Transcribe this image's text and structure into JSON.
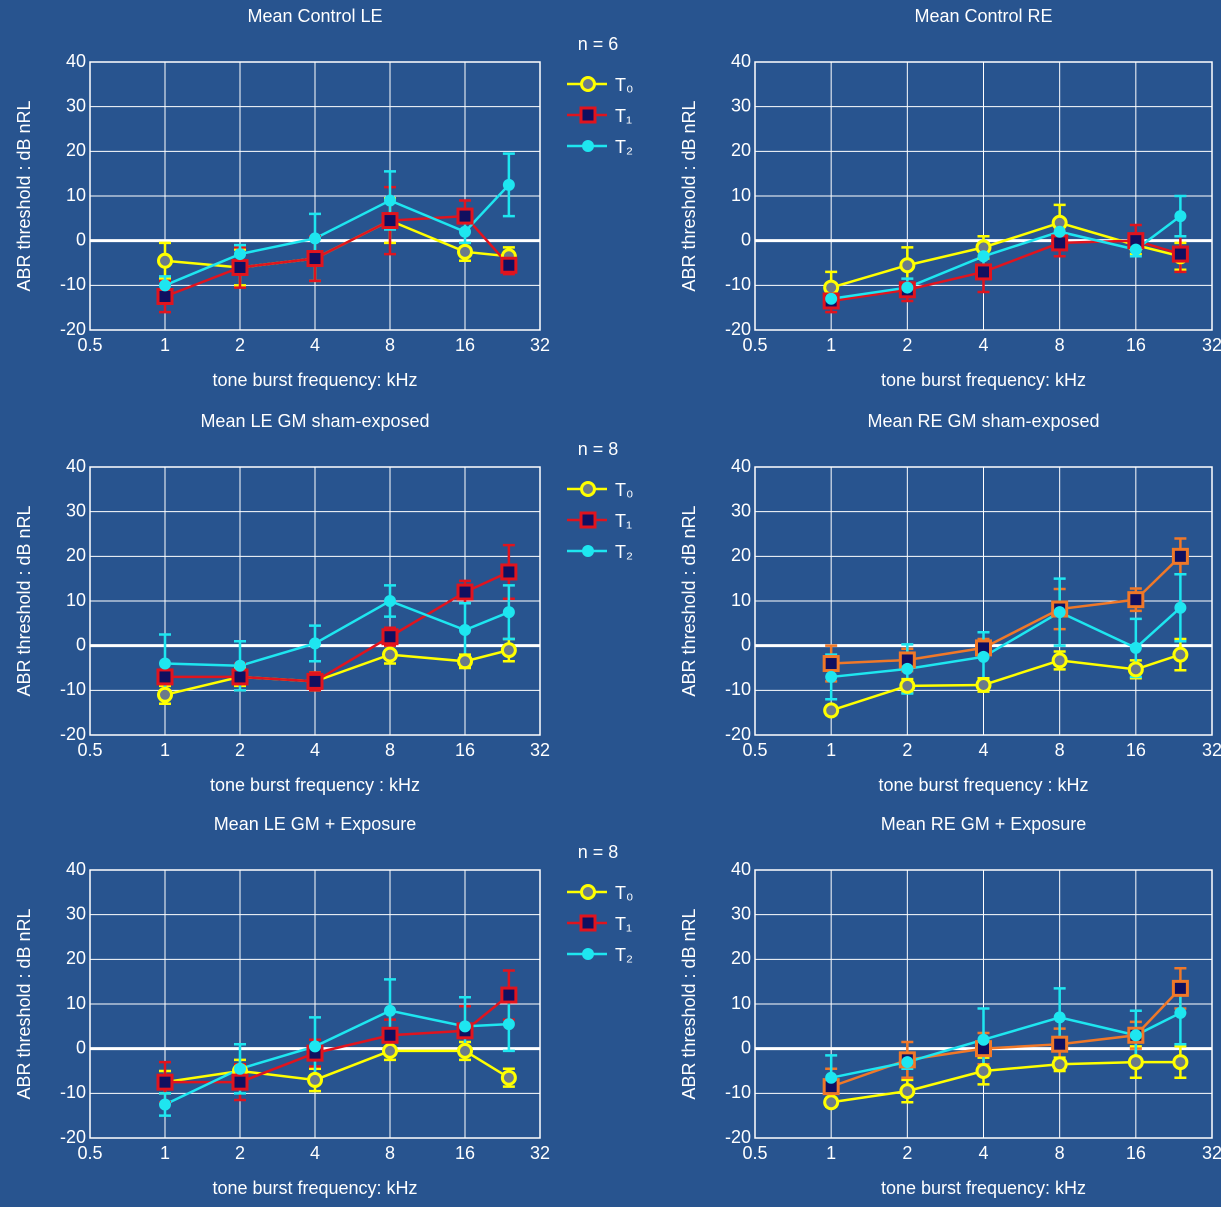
{
  "chart_data": [
    {
      "type": "line",
      "title": "Mean Control  LE",
      "xlabel": "tone burst frequency: kHz",
      "ylabel": "ABR threshold : dB nRL",
      "annotation": "n = 6",
      "legend": true,
      "xscale": "log",
      "grid": true,
      "hline": 0,
      "x": [
        1,
        2,
        4,
        8,
        16,
        24
      ],
      "xlim": [
        0.5,
        32
      ],
      "xticks": [
        0.5,
        1,
        2,
        4,
        8,
        16,
        32
      ],
      "ylim": [
        -20,
        40
      ],
      "yticks": [
        -20,
        -10,
        0,
        10,
        20,
        30,
        40
      ],
      "series": [
        {
          "name": "T₀",
          "color": "#ffff00",
          "marker": "circle-open",
          "values": [
            -4.5,
            -6,
            -4,
            4.5,
            -2.5,
            -3.5
          ],
          "errors": [
            4,
            4,
            5,
            5,
            2,
            2
          ]
        },
        {
          "name": "T₁",
          "color": "#e0141e",
          "marker": "square",
          "values": [
            -12.5,
            -6,
            -4,
            4.5,
            5.5,
            -5.5
          ],
          "errors": [
            3.5,
            4.5,
            5,
            7.5,
            3.5,
            2
          ]
        },
        {
          "name": "T₂",
          "color": "#1ee6f0",
          "marker": "circle",
          "values": [
            -10,
            -3,
            0.5,
            9,
            2,
            12.5
          ],
          "errors": [
            2,
            2,
            5.5,
            6.5,
            2.5,
            7
          ]
        }
      ]
    },
    {
      "type": "line",
      "title": "Mean Control RE",
      "xlabel": "tone burst frequency: kHz",
      "ylabel": "ABR threshold : dB nRL",
      "legend": false,
      "xscale": "log",
      "grid": true,
      "hline": 0,
      "x": [
        1,
        2,
        4,
        8,
        16,
        24
      ],
      "xlim": [
        0.5,
        32
      ],
      "xticks": [
        0.5,
        1,
        2,
        4,
        8,
        16,
        32
      ],
      "ylim": [
        -20,
        40
      ],
      "yticks": [
        -20,
        -10,
        0,
        10,
        20,
        30,
        40
      ],
      "series": [
        {
          "color": "#ffff00",
          "marker": "circle-open",
          "values": [
            -10.5,
            -5.5,
            -1.5,
            4,
            -1,
            -3.5
          ],
          "errors": [
            3.5,
            4,
            2.5,
            4,
            2,
            3
          ]
        },
        {
          "color": "#e0141e",
          "marker": "square",
          "values": [
            -13.5,
            -11,
            -7,
            -0.5,
            0,
            -3
          ],
          "errors": [
            2.5,
            2.5,
            4.5,
            3,
            3.5,
            4
          ]
        },
        {
          "color": "#1ee6f0",
          "marker": "circle",
          "values": [
            -13,
            -10.5,
            -3.5,
            2,
            -2,
            5.5
          ],
          "errors": [
            2,
            2,
            2,
            1.5,
            1.5,
            4.5
          ]
        }
      ]
    },
    {
      "type": "line",
      "title": "Mean LE GM sham-exposed",
      "xlabel": "tone burst frequency : kHz",
      "ylabel": "ABR threshold : dB nRL",
      "annotation": "n = 8",
      "legend": true,
      "xscale": "log",
      "grid": true,
      "hline": 0,
      "x": [
        1,
        2,
        4,
        8,
        16,
        24
      ],
      "xlim": [
        0.5,
        32
      ],
      "xticks": [
        0.5,
        1,
        2,
        4,
        8,
        16,
        32
      ],
      "ylim": [
        -20,
        40
      ],
      "yticks": [
        -20,
        -10,
        0,
        10,
        20,
        30,
        40
      ],
      "series": [
        {
          "name": "T₀",
          "color": "#ffff00",
          "marker": "circle-open",
          "values": [
            -11,
            -7,
            -8,
            -2,
            -3.5,
            -1
          ],
          "errors": [
            2,
            2,
            2,
            2,
            1.5,
            2.5
          ]
        },
        {
          "name": "T₁",
          "color": "#e0141e",
          "marker": "square",
          "values": [
            -7,
            -7,
            -8,
            2,
            12,
            16.5
          ],
          "errors": [
            3,
            3,
            2,
            2,
            2.5,
            6
          ]
        },
        {
          "name": "T₂",
          "color": "#1ee6f0",
          "marker": "circle",
          "values": [
            -4,
            -4.5,
            0.5,
            10,
            3.5,
            7.5
          ],
          "errors": [
            6.5,
            5.5,
            4,
            3.5,
            6,
            6
          ]
        }
      ]
    },
    {
      "type": "line",
      "title": "Mean RE GM sham-exposed",
      "xlabel": "tone burst frequency : kHz",
      "ylabel": "ABR threshold : dB nRL",
      "legend": false,
      "xscale": "log",
      "grid": true,
      "hline": 0,
      "x": [
        1,
        2,
        4,
        8,
        16,
        24
      ],
      "xlim": [
        0.5,
        32
      ],
      "xticks": [
        0.5,
        1,
        2,
        4,
        8,
        16,
        32
      ],
      "ylim": [
        -20,
        40
      ],
      "yticks": [
        -20,
        -10,
        0,
        10,
        20,
        30,
        40
      ],
      "series": [
        {
          "color": "#ffff00",
          "marker": "circle-open",
          "values": [
            -14.5,
            -9,
            -8.8,
            -3.3,
            -5.3,
            -2
          ],
          "errors": [
            1,
            1.5,
            1.5,
            2,
            2,
            3.5
          ]
        },
        {
          "color": "#f07828",
          "marker": "square",
          "values": [
            -4,
            -3.2,
            -0.5,
            8.2,
            10.3,
            20
          ],
          "errors": [
            4,
            2.5,
            2,
            4.5,
            2.5,
            4
          ]
        },
        {
          "color": "#1ee6f0",
          "marker": "circle",
          "values": [
            -7,
            -5.2,
            -2.5,
            7.5,
            -0.5,
            8.5
          ],
          "errors": [
            5,
            5.5,
            5.5,
            7.5,
            6.5,
            7.5
          ]
        }
      ]
    },
    {
      "type": "line",
      "title": "Mean LE GM + Exposure",
      "xlabel": "tone burst frequency: kHz",
      "ylabel": "ABR threshold : dB nRL",
      "annotation": "n = 8",
      "legend": true,
      "xscale": "log",
      "grid": true,
      "hline": 0,
      "x": [
        1,
        2,
        4,
        8,
        16,
        24
      ],
      "xlim": [
        0.5,
        32
      ],
      "xticks": [
        0.5,
        1,
        2,
        4,
        8,
        16,
        32
      ],
      "ylim": [
        -20,
        40
      ],
      "yticks": [
        -20,
        -10,
        0,
        10,
        20,
        30,
        40
      ],
      "series": [
        {
          "name": "T₀",
          "color": "#ffff00",
          "marker": "circle-open",
          "values": [
            -7.5,
            -5,
            -7,
            -0.5,
            -0.5,
            -6.5
          ],
          "errors": [
            2.5,
            2.5,
            2.5,
            2,
            2,
            2
          ]
        },
        {
          "name": "T₁",
          "color": "#e0141e",
          "marker": "square",
          "values": [
            -7.5,
            -7.5,
            -1,
            3,
            4,
            12
          ],
          "errors": [
            4.5,
            4,
            3,
            3.5,
            5.5,
            5.5
          ]
        },
        {
          "name": "T₂",
          "color": "#1ee6f0",
          "marker": "circle",
          "values": [
            -12.5,
            -4.5,
            0.5,
            8.5,
            5,
            5.5
          ],
          "errors": [
            2.5,
            5.5,
            6.5,
            7,
            6.5,
            6
          ]
        }
      ]
    },
    {
      "type": "line",
      "title": "Mean RE GM + Exposure",
      "xlabel": "tone burst frequency: kHz",
      "ylabel": "ABR threshold : dB nRL",
      "legend": false,
      "xscale": "log",
      "grid": true,
      "hline": 0,
      "x": [
        1,
        2,
        4,
        8,
        16,
        24
      ],
      "xlim": [
        0.5,
        32
      ],
      "xticks": [
        0.5,
        1,
        2,
        4,
        8,
        16,
        32
      ],
      "ylim": [
        -20,
        40
      ],
      "yticks": [
        -20,
        -10,
        0,
        10,
        20,
        30,
        40
      ],
      "series": [
        {
          "color": "#ffff00",
          "marker": "circle-open",
          "values": [
            -12,
            -9.5,
            -5,
            -3.5,
            -3,
            -3
          ],
          "errors": [
            1,
            2.5,
            3,
            1.5,
            3.5,
            3.5
          ]
        },
        {
          "color": "#f07828",
          "marker": "square",
          "values": [
            -8.5,
            -2.5,
            0,
            1,
            3,
            13.5
          ],
          "errors": [
            4,
            4,
            3.5,
            3.5,
            3,
            4.5
          ]
        },
        {
          "color": "#1ee6f0",
          "marker": "circle",
          "values": [
            -6.5,
            -3,
            2,
            7,
            3,
            8
          ],
          "errors": [
            5,
            1.5,
            7,
            6.5,
            5.5,
            7
          ]
        }
      ]
    }
  ]
}
